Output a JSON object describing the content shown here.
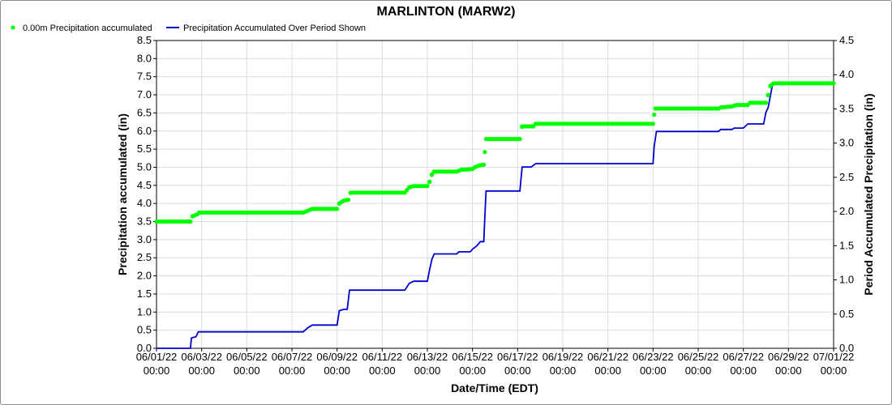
{
  "chart_data": {
    "type": "line",
    "title": "MARLINTON (MARW2)",
    "xlabel": "Date/Time (EDT)",
    "ylabel_left": "Precipitation accumulated (in)",
    "ylabel_right": "Period Accumulated Precipitation (in)",
    "ylim_left": [
      0,
      8.5
    ],
    "ylim_right": [
      0,
      4.5
    ],
    "yticks_left": [
      "0.0",
      "0.5",
      "1.0",
      "1.5",
      "2.0",
      "2.5",
      "3.0",
      "3.5",
      "4.0",
      "4.5",
      "5.0",
      "5.5",
      "6.0",
      "6.5",
      "7.0",
      "7.5",
      "8.0",
      "8.5"
    ],
    "yticks_right": [
      "0.0",
      "0.5",
      "1.0",
      "1.5",
      "2.0",
      "2.5",
      "3.0",
      "3.5",
      "4.0",
      "4.5"
    ],
    "xlim_days": [
      0,
      30
    ],
    "xticks": [
      {
        "date": "06/01/22",
        "time": "00:00"
      },
      {
        "date": "06/03/22",
        "time": "00:00"
      },
      {
        "date": "06/05/22",
        "time": "00:00"
      },
      {
        "date": "06/07/22",
        "time": "00:00"
      },
      {
        "date": "06/09/22",
        "time": "00:00"
      },
      {
        "date": "06/11/22",
        "time": "00:00"
      },
      {
        "date": "06/13/22",
        "time": "00:00"
      },
      {
        "date": "06/15/22",
        "time": "00:00"
      },
      {
        "date": "06/17/22",
        "time": "00:00"
      },
      {
        "date": "06/19/22",
        "time": "00:00"
      },
      {
        "date": "06/21/22",
        "time": "00:00"
      },
      {
        "date": "06/23/22",
        "time": "00:00"
      },
      {
        "date": "06/25/22",
        "time": "00:00"
      },
      {
        "date": "06/27/22",
        "time": "00:00"
      },
      {
        "date": "06/29/22",
        "time": "00:00"
      },
      {
        "date": "07/01/22",
        "time": "00:00"
      }
    ],
    "grid": true,
    "legend_position": "top-left",
    "series": [
      {
        "name": "0.00m Precipitation accumulated",
        "style": "dots",
        "axis": "left",
        "color": "#00ff00",
        "step_points": [
          [
            0.0,
            3.5
          ],
          [
            1.5,
            3.5
          ],
          [
            1.6,
            3.65
          ],
          [
            1.8,
            3.7
          ],
          [
            1.9,
            3.75
          ],
          [
            6.5,
            3.75
          ],
          [
            6.7,
            3.8
          ],
          [
            6.9,
            3.85
          ],
          [
            8.0,
            3.85
          ],
          [
            8.1,
            4.0
          ],
          [
            8.3,
            4.08
          ],
          [
            8.5,
            4.1
          ],
          [
            8.6,
            4.3
          ],
          [
            11.0,
            4.3
          ],
          [
            11.2,
            4.45
          ],
          [
            11.4,
            4.48
          ],
          [
            12.0,
            4.48
          ],
          [
            12.1,
            4.6
          ],
          [
            12.2,
            4.8
          ],
          [
            12.3,
            4.88
          ],
          [
            13.3,
            4.88
          ],
          [
            13.5,
            4.93
          ],
          [
            14.0,
            4.95
          ],
          [
            14.1,
            5.0
          ],
          [
            14.3,
            5.05
          ],
          [
            14.5,
            5.07
          ],
          [
            14.55,
            5.42
          ],
          [
            14.6,
            5.78
          ],
          [
            16.1,
            5.78
          ],
          [
            16.2,
            6.13
          ],
          [
            16.7,
            6.13
          ],
          [
            16.8,
            6.2
          ],
          [
            22.0,
            6.2
          ],
          [
            22.05,
            6.45
          ],
          [
            22.1,
            6.62
          ],
          [
            24.9,
            6.62
          ],
          [
            25.0,
            6.65
          ],
          [
            25.5,
            6.68
          ],
          [
            25.7,
            6.72
          ],
          [
            26.2,
            6.72
          ],
          [
            26.3,
            6.78
          ],
          [
            27.0,
            6.78
          ],
          [
            27.1,
            7.0
          ],
          [
            27.2,
            7.25
          ],
          [
            27.35,
            7.32
          ],
          [
            30.0,
            7.32
          ]
        ]
      },
      {
        "name": "Precipitation Accumulated Over Period Shown",
        "style": "line",
        "axis": "right",
        "color": "#0000cc",
        "step_points": [
          [
            0.0,
            0.0
          ],
          [
            1.5,
            0.0
          ],
          [
            1.55,
            0.15
          ],
          [
            1.75,
            0.17
          ],
          [
            1.85,
            0.24
          ],
          [
            6.5,
            0.24
          ],
          [
            6.7,
            0.3
          ],
          [
            6.9,
            0.34
          ],
          [
            8.0,
            0.34
          ],
          [
            8.1,
            0.55
          ],
          [
            8.3,
            0.57
          ],
          [
            8.45,
            0.57
          ],
          [
            8.55,
            0.85
          ],
          [
            11.0,
            0.85
          ],
          [
            11.2,
            0.95
          ],
          [
            11.4,
            0.98
          ],
          [
            12.0,
            0.98
          ],
          [
            12.1,
            1.15
          ],
          [
            12.2,
            1.3
          ],
          [
            12.3,
            1.38
          ],
          [
            13.3,
            1.38
          ],
          [
            13.4,
            1.41
          ],
          [
            13.9,
            1.41
          ],
          [
            14.0,
            1.45
          ],
          [
            14.2,
            1.5
          ],
          [
            14.35,
            1.56
          ],
          [
            14.5,
            1.56
          ],
          [
            14.55,
            1.95
          ],
          [
            14.6,
            2.3
          ],
          [
            16.1,
            2.3
          ],
          [
            16.2,
            2.65
          ],
          [
            16.6,
            2.65
          ],
          [
            16.8,
            2.7
          ],
          [
            22.0,
            2.7
          ],
          [
            22.05,
            2.95
          ],
          [
            22.15,
            3.17
          ],
          [
            24.9,
            3.17
          ],
          [
            25.0,
            3.2
          ],
          [
            25.5,
            3.2
          ],
          [
            25.6,
            3.22
          ],
          [
            26.0,
            3.22
          ],
          [
            26.2,
            3.28
          ],
          [
            26.9,
            3.28
          ],
          [
            27.0,
            3.45
          ],
          [
            27.1,
            3.52
          ],
          [
            27.3,
            3.87
          ],
          [
            30.0,
            3.87
          ]
        ]
      }
    ]
  }
}
